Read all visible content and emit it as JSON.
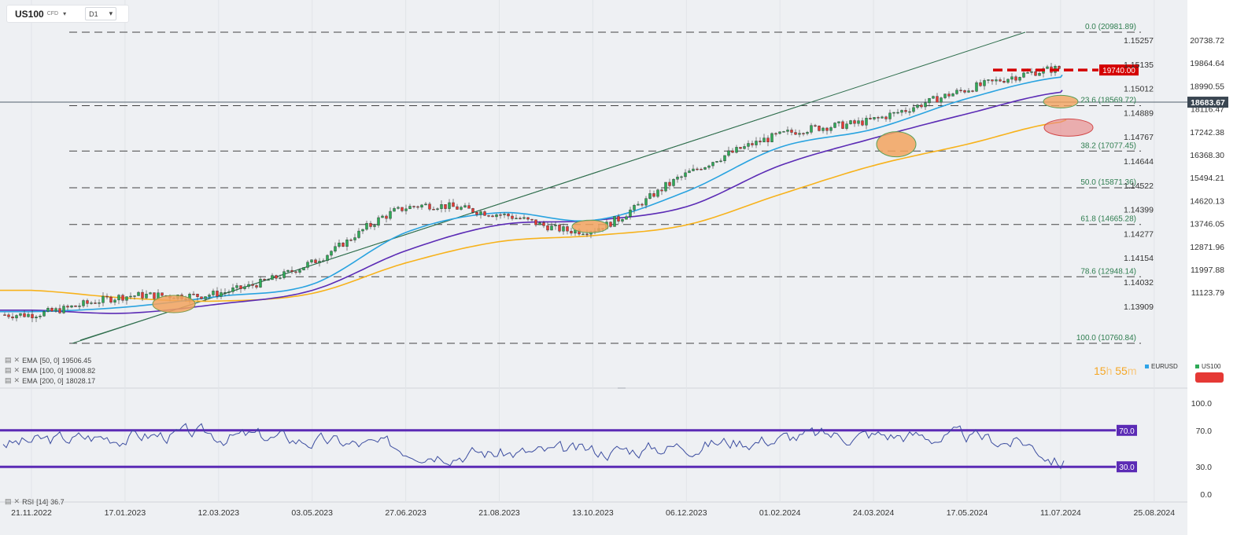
{
  "toolbar": {
    "symbol": "US100",
    "cfd": "CFD",
    "timeframe": "D1",
    "caret": "▾"
  },
  "price_axis": [
    "20738.72",
    "19864.64",
    "18990.55",
    "18116.47",
    "17242.38",
    "16368.30",
    "15494.21",
    "14620.13",
    "13746.05",
    "12871.96",
    "11997.88",
    "11123.79"
  ],
  "eurusd_axis": [
    "1.15257",
    "1.15135",
    "1.15012",
    "1.14889",
    "1.14767",
    "1.14644",
    "1.14522",
    "1.14399",
    "1.14277",
    "1.14154",
    "1.14032",
    "1.13909"
  ],
  "current_price": "18683.67",
  "resistance_label": "19740.00",
  "fib_labels": [
    "0.0 (20981.89)",
    "23.6 (18569.72)",
    "38.2 (17077.45)",
    "50.0 (15871.36)",
    "61.8 (14665.28)",
    "78.6 (12948.14)",
    "100.0 (10760.84)"
  ],
  "indicators": [
    {
      "name": "EMA",
      "params": "[50, 0]",
      "value": "19506.45"
    },
    {
      "name": "EMA",
      "params": "[100, 0]",
      "value": "19008.82"
    },
    {
      "name": "EMA",
      "params": "[200, 0]",
      "value": "18028.17"
    }
  ],
  "rsi": {
    "label": "RSI",
    "params": "[14]",
    "value": "36.7",
    "levels": [
      "70.0",
      "30.0"
    ],
    "axis": [
      "100.0",
      "70.0",
      "30.0",
      "0.0"
    ]
  },
  "timer": {
    "hours": "15",
    "h": "h",
    "minutes": "55",
    "m": "m"
  },
  "legend_pairs": [
    {
      "name": "EURUSD",
      "color": "#2ea4e8"
    },
    {
      "name": "US100",
      "color": "#2eaa57"
    }
  ],
  "x_labels": [
    "21.11.2022",
    "17.01.2023",
    "12.03.2023",
    "03.05.2023",
    "27.06.2023",
    "21.08.2023",
    "13.10.2023",
    "06.12.2023",
    "01.02.2024",
    "24.03.2024",
    "17.05.2024",
    "11.07.2024",
    "25.08.2024"
  ],
  "colors": {
    "bull": "#2eaa57",
    "bear": "#e53935",
    "ema50": "#29a3e0",
    "ema100": "#5b2bb5",
    "ema200": "#f7b21b",
    "rsi_line": "#3c4da0",
    "rsi_level": "#5b2bb5",
    "resistance": "#d40000"
  },
  "chart_data": {
    "type": "line",
    "title": "US100 D1",
    "x": [
      "21.11.2022",
      "17.01.2023",
      "12.03.2023",
      "03.05.2023",
      "27.06.2023",
      "21.08.2023",
      "13.10.2023",
      "06.12.2023",
      "01.02.2024",
      "24.03.2024",
      "17.05.2024",
      "11.07.2024"
    ],
    "series": [
      {
        "name": "US100",
        "values": [
          11700,
          12300,
          12400,
          13400,
          15200,
          15000,
          14500,
          16300,
          17600,
          18100,
          19100,
          19800
        ]
      },
      {
        "name": "EMA [50, 0]",
        "values": [
          11800,
          11950,
          12300,
          12700,
          14400,
          15050,
          14800,
          15750,
          17200,
          17800,
          18800,
          19506.45
        ]
      },
      {
        "name": "EMA [100, 0]",
        "values": [
          11850,
          11750,
          12050,
          12500,
          13800,
          14650,
          14800,
          15250,
          16600,
          17500,
          18300,
          19008.82
        ]
      },
      {
        "name": "EMA [200, 0]",
        "values": [
          12500,
          12250,
          12150,
          12400,
          13400,
          14100,
          14300,
          14650,
          15650,
          16600,
          17300,
          18028.17
        ]
      }
    ],
    "ylim": [
      10760.84,
      20981.89
    ],
    "fibonacci": [
      {
        "level": "0.0",
        "value": 20981.89
      },
      {
        "level": "23.6",
        "value": 18569.72
      },
      {
        "level": "38.2",
        "value": 17077.45
      },
      {
        "level": "50.0",
        "value": 15871.36
      },
      {
        "level": "61.8",
        "value": 14665.28
      },
      {
        "level": "78.6",
        "value": 12948.14
      },
      {
        "level": "100.0",
        "value": 10760.84
      }
    ],
    "resistance": 19740.0,
    "current_price": 18683.67,
    "rsi": {
      "period": 14,
      "value": 36.7,
      "levels": [
        70,
        30
      ]
    }
  }
}
